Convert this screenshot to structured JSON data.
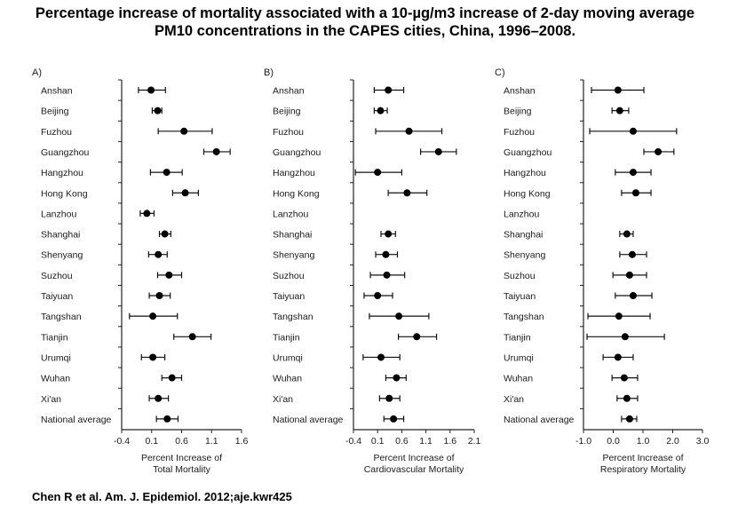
{
  "title_line1": "Percentage increase of mortality associated with a 10-µg/m3 increase of 2-day moving average",
  "title_line2": "PM10 concentrations in the CAPES cities, China, 1996–2008.",
  "citation": "Chen R et al. Am. J. Epidemiol. 2012;aje.kwr425",
  "chart_data": [
    {
      "type": "forest",
      "panel_label": "A)",
      "xlabel_line1": "Percent Increase of",
      "xlabel_line2": "Total Mortality",
      "xlim": [
        -0.4,
        1.6
      ],
      "xticks": [
        -0.4,
        0.1,
        0.6,
        1.1,
        1.6
      ],
      "xtick_labels": [
        "-0.4",
        "0.1",
        "0.6",
        "1.1",
        "1.6"
      ],
      "categories": [
        "Anshan",
        "Beijing",
        "Fuzhou",
        "Guangzhou",
        "Hangzhou",
        "Hong Kong",
        "Lanzhou",
        "Shanghai",
        "Shenyang",
        "Suzhou",
        "Taiyuan",
        "Tangshan",
        "Tianjin",
        "Urumqi",
        "Wuhan",
        "Xi'an",
        "National average"
      ],
      "estimates": [
        0.09,
        0.2,
        0.64,
        1.18,
        0.35,
        0.66,
        0.02,
        0.32,
        0.21,
        0.39,
        0.23,
        0.12,
        0.78,
        0.12,
        0.44,
        0.21,
        0.36
      ],
      "lower": [
        -0.12,
        0.11,
        0.21,
        0.97,
        0.08,
        0.45,
        -0.09,
        0.23,
        0.05,
        0.2,
        0.06,
        -0.27,
        0.47,
        -0.07,
        0.27,
        0.06,
        0.18
      ],
      "upper": [
        0.33,
        0.27,
        1.11,
        1.41,
        0.61,
        0.88,
        0.14,
        0.42,
        0.36,
        0.6,
        0.41,
        0.53,
        1.09,
        0.32,
        0.6,
        0.38,
        0.54
      ]
    },
    {
      "type": "forest",
      "panel_label": "B)",
      "xlabel_line1": "Percent Increase of",
      "xlabel_line2": "Cardiovascular Mortality",
      "xlim": [
        -0.4,
        2.1
      ],
      "xticks": [
        -0.4,
        0.1,
        0.6,
        1.1,
        1.6,
        2.1
      ],
      "xtick_labels": [
        "-0.4",
        "0.1",
        "0.6",
        "1.1",
        "1.6",
        "2.1"
      ],
      "categories": [
        "Anshan",
        "Beijing",
        "Fuzhou",
        "Guangzhou",
        "Hangzhou",
        "Hong Kong",
        "Lanzhou",
        "Shanghai",
        "Shenyang",
        "Suzhou",
        "Taiyuan",
        "Tangshan",
        "Tianjin",
        "Urumqi",
        "Wuhan",
        "Xi'an",
        "National average"
      ],
      "estimates": [
        0.32,
        0.16,
        0.75,
        1.36,
        0.1,
        0.71,
        null,
        0.32,
        0.27,
        0.29,
        0.1,
        0.54,
        0.91,
        0.17,
        0.49,
        0.34,
        0.43
      ],
      "lower": [
        0.03,
        0.03,
        0.06,
        0.99,
        -0.36,
        0.32,
        null,
        0.17,
        0.06,
        -0.05,
        -0.18,
        -0.07,
        0.53,
        -0.2,
        0.27,
        0.14,
        0.23
      ],
      "upper": [
        0.64,
        0.3,
        1.43,
        1.73,
        0.6,
        1.12,
        null,
        0.47,
        0.51,
        0.66,
        0.41,
        1.16,
        1.32,
        0.56,
        0.69,
        0.56,
        0.64
      ]
    },
    {
      "type": "forest",
      "panel_label": "C)",
      "xlabel_line1": "Percent Increase of",
      "xlabel_line2": "Respiratory Mortality",
      "xlim": [
        -1.0,
        3.0
      ],
      "xticks": [
        -1.0,
        0.0,
        1.0,
        2.0,
        3.0
      ],
      "xtick_labels": [
        "-1.0",
        "0.0",
        "1.0",
        "2.0",
        "3.0"
      ],
      "categories": [
        "Anshan",
        "Beijing",
        "Fuzhou",
        "Guangzhou",
        "Hangzhou",
        "Hong Kong",
        "Lanzhou",
        "Shanghai",
        "Shenyang",
        "Suzhou",
        "Taiyuan",
        "Tangshan",
        "Tianjin",
        "Urumqi",
        "Wuhan",
        "Xi'an",
        "National average"
      ],
      "estimates": [
        0.16,
        0.22,
        0.67,
        1.51,
        0.67,
        0.76,
        null,
        0.46,
        0.64,
        0.55,
        0.67,
        0.19,
        0.4,
        0.16,
        0.37,
        0.46,
        0.55
      ],
      "lower": [
        -0.73,
        -0.04,
        -0.79,
        1.03,
        0.07,
        0.28,
        null,
        0.22,
        0.22,
        -0.01,
        0.07,
        -0.85,
        -0.88,
        -0.34,
        -0.04,
        0.13,
        0.28
      ],
      "upper": [
        1.03,
        0.52,
        2.13,
        2.04,
        1.27,
        1.27,
        null,
        0.67,
        1.12,
        1.12,
        1.3,
        1.24,
        1.72,
        0.67,
        0.82,
        0.82,
        0.79
      ]
    }
  ]
}
